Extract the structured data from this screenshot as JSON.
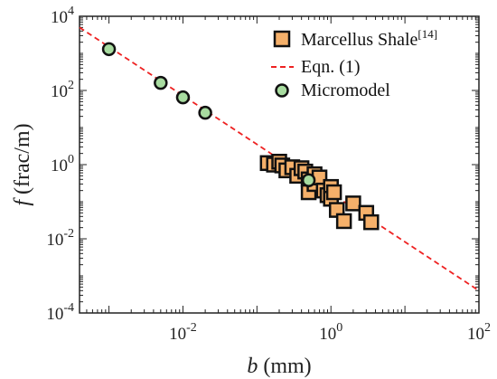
{
  "chart_data": {
    "type": "scatter",
    "title": "",
    "xlabel": "b (mm)",
    "ylabel": "f (frac/m)",
    "xlabel_italic": "b",
    "xlabel_rest": " (mm)",
    "ylabel_italic": "f",
    "ylabel_rest": " (frac/m)",
    "xscale": "log",
    "yscale": "log",
    "xlim": [
      0.0004,
      100
    ],
    "ylim": [
      0.0001,
      10000
    ],
    "grid": false,
    "legend_position": "top-right",
    "x_ticks": [
      {
        "base": "10",
        "exp": "-2",
        "value": 0.01
      },
      {
        "base": "10",
        "exp": "0",
        "value": 1
      },
      {
        "base": "10",
        "exp": "2",
        "value": 100
      }
    ],
    "y_ticks": [
      {
        "base": "10",
        "exp": "-4",
        "value": 0.0001
      },
      {
        "base": "10",
        "exp": "-2",
        "value": 0.01
      },
      {
        "base": "10",
        "exp": "0",
        "value": 1
      },
      {
        "base": "10",
        "exp": "2",
        "value": 100
      },
      {
        "base": "10",
        "exp": "4",
        "value": 10000
      }
    ],
    "series": [
      {
        "name": "Marcellus Shale[14]",
        "name_main": "Marcellus Shale",
        "name_sup": "[14]",
        "marker": "square",
        "color": "#f5b06a",
        "edge_color": "#111111",
        "points": [
          [
            0.14,
            1.1
          ],
          [
            0.17,
            1.0
          ],
          [
            0.2,
            1.2
          ],
          [
            0.22,
            0.95
          ],
          [
            0.25,
            0.7
          ],
          [
            0.3,
            0.85
          ],
          [
            0.35,
            0.5
          ],
          [
            0.4,
            0.8
          ],
          [
            0.45,
            0.65
          ],
          [
            0.5,
            0.4
          ],
          [
            0.5,
            0.18
          ],
          [
            0.6,
            0.55
          ],
          [
            0.6,
            0.3
          ],
          [
            0.7,
            0.45
          ],
          [
            0.8,
            0.2
          ],
          [
            0.9,
            0.15
          ],
          [
            1.0,
            0.25
          ],
          [
            1.0,
            0.12
          ],
          [
            1.1,
            0.18
          ],
          [
            1.2,
            0.06
          ],
          [
            1.5,
            0.03
          ],
          [
            2.0,
            0.09
          ],
          [
            3.0,
            0.05
          ],
          [
            3.5,
            0.028
          ]
        ]
      },
      {
        "name": "Eqn. (1)",
        "marker": "dashed-line",
        "color": "#ee2222",
        "points": [
          [
            0.0004,
            5000
          ],
          [
            100,
            0.0004
          ]
        ]
      },
      {
        "name": "Micromodel",
        "marker": "circle",
        "color": "#a8dca0",
        "edge_color": "#111111",
        "points": [
          [
            0.001,
            1300
          ],
          [
            0.005,
            160
          ],
          [
            0.01,
            65
          ],
          [
            0.02,
            25
          ],
          [
            0.5,
            0.38
          ]
        ]
      }
    ]
  }
}
